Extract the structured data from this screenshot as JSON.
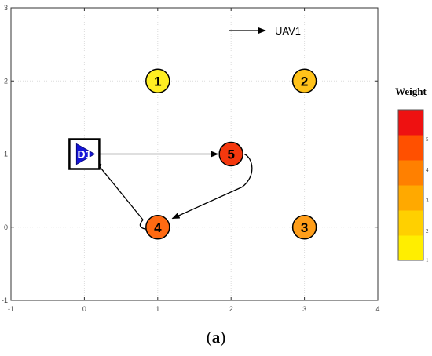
{
  "chart_data": {
    "type": "scatter",
    "xlim": [
      -1,
      4
    ],
    "ylim": [
      -1,
      3
    ],
    "x_ticks": [
      -1,
      0,
      1,
      2,
      3,
      4
    ],
    "y_ticks": [
      -1,
      0,
      1,
      2,
      3
    ],
    "grid": true,
    "legend": {
      "label": "UAV1",
      "position": "top-right"
    },
    "depot": {
      "label": "D1",
      "x": 0,
      "y": 1
    },
    "targets": [
      {
        "id": "1",
        "x": 1,
        "y": 2,
        "weight": 1,
        "color": "#ffee22"
      },
      {
        "id": "2",
        "x": 3,
        "y": 2,
        "weight": 2,
        "color": "#ffc21a"
      },
      {
        "id": "3",
        "x": 3,
        "y": 0,
        "weight": 3,
        "color": "#ff9e1a"
      },
      {
        "id": "4",
        "x": 1,
        "y": 0,
        "weight": 4,
        "color": "#ff6a12"
      },
      {
        "id": "5",
        "x": 2,
        "y": 1,
        "weight": 5,
        "color": "#f4380e"
      }
    ],
    "path_order": [
      "D1",
      "5",
      "4",
      "D1"
    ],
    "colorbar": {
      "title": "Weight",
      "ticks": [
        "1",
        "2",
        "3",
        "4",
        "5"
      ],
      "colors": [
        "#ffee00",
        "#ffd000",
        "#ffa900",
        "#ff8000",
        "#ff5000",
        "#ee1111"
      ]
    }
  },
  "caption": {
    "open": "(",
    "letter": "a",
    "close": ")"
  }
}
